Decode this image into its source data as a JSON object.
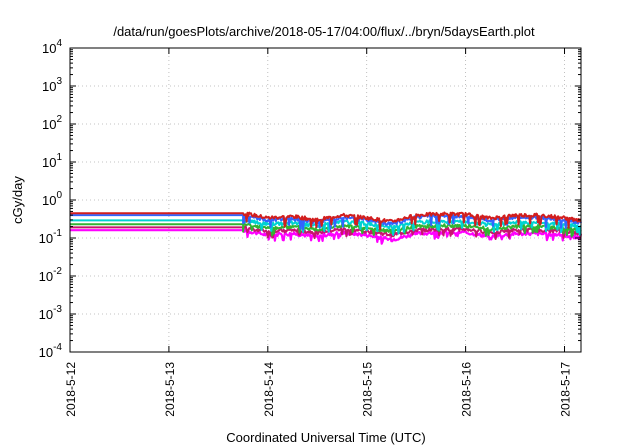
{
  "chart_data": {
    "type": "line",
    "title": "/data/run/goesPlots/archive/2018-05-17/04:00/flux/../bryn/5daysEarth.plot",
    "xlabel": "Coordinated Universal Time (UTC)",
    "ylabel": "cGy/day",
    "yscale": "log",
    "ylim": [
      0.0001,
      10000
    ],
    "xlim": [
      "2018-05-12 00:00",
      "2018-05-17 04:00"
    ],
    "x_ticks": [
      "2018-5-12",
      "2018-5-13",
      "2018-5-14",
      "2018-5-15",
      "2018-5-16",
      "2018-5-17"
    ],
    "y_ticks": [
      {
        "base": "10",
        "exp": "-4"
      },
      {
        "base": "10",
        "exp": "-3"
      },
      {
        "base": "10",
        "exp": "-2"
      },
      {
        "base": "10",
        "exp": "-1"
      },
      {
        "base": "10",
        "exp": "0"
      },
      {
        "base": "10",
        "exp": "1"
      },
      {
        "base": "10",
        "exp": "2"
      },
      {
        "base": "10",
        "exp": "3"
      },
      {
        "base": "10",
        "exp": "4"
      }
    ],
    "grid": true,
    "legend": "none",
    "series": [
      {
        "color": "#ff00ff",
        "x": [
          "2018-05-12 00:00",
          "2018-05-13 18:00",
          "2018-05-14 00:00",
          "2018-05-14 06:00",
          "2018-05-14 12:00",
          "2018-05-14 18:00",
          "2018-05-15 00:00",
          "2018-05-15 06:00",
          "2018-05-15 12:00",
          "2018-05-15 18:00",
          "2018-05-16 00:00",
          "2018-05-16 06:00",
          "2018-05-16 12:00",
          "2018-05-16 18:00",
          "2018-05-17 00:00",
          "2018-05-17 04:00"
        ],
        "values": [
          0.16,
          0.16,
          0.12,
          0.13,
          0.11,
          0.14,
          0.12,
          0.09,
          0.13,
          0.14,
          0.14,
          0.11,
          0.13,
          0.13,
          0.12,
          0.1
        ]
      },
      {
        "color": "#c8146e",
        "x": [
          "2018-05-12 00:00",
          "2018-05-13 18:00",
          "2018-05-14 00:00",
          "2018-05-14 06:00",
          "2018-05-14 12:00",
          "2018-05-14 18:00",
          "2018-05-15 00:00",
          "2018-05-15 06:00",
          "2018-05-15 12:00",
          "2018-05-15 18:00",
          "2018-05-16 00:00",
          "2018-05-16 06:00",
          "2018-05-16 12:00",
          "2018-05-16 18:00",
          "2018-05-17 00:00",
          "2018-05-17 04:00"
        ],
        "values": [
          0.19,
          0.19,
          0.15,
          0.16,
          0.14,
          0.17,
          0.15,
          0.12,
          0.16,
          0.17,
          0.17,
          0.14,
          0.16,
          0.16,
          0.15,
          0.13
        ]
      },
      {
        "color": "#32b432",
        "x": [
          "2018-05-12 00:00",
          "2018-05-13 18:00",
          "2018-05-14 00:00",
          "2018-05-14 06:00",
          "2018-05-14 12:00",
          "2018-05-14 18:00",
          "2018-05-15 00:00",
          "2018-05-15 06:00",
          "2018-05-15 12:00",
          "2018-05-15 18:00",
          "2018-05-16 00:00",
          "2018-05-16 06:00",
          "2018-05-16 12:00",
          "2018-05-16 18:00",
          "2018-05-17 00:00",
          "2018-05-17 04:00"
        ],
        "values": [
          0.23,
          0.23,
          0.18,
          0.2,
          0.17,
          0.21,
          0.18,
          0.15,
          0.2,
          0.21,
          0.21,
          0.17,
          0.2,
          0.2,
          0.18,
          0.16
        ]
      },
      {
        "color": "#00d2d2",
        "x": [
          "2018-05-12 00:00",
          "2018-05-13 18:00",
          "2018-05-14 00:00",
          "2018-05-14 06:00",
          "2018-05-14 12:00",
          "2018-05-14 18:00",
          "2018-05-15 00:00",
          "2018-05-15 06:00",
          "2018-05-15 12:00",
          "2018-05-15 18:00",
          "2018-05-16 00:00",
          "2018-05-16 06:00",
          "2018-05-16 12:00",
          "2018-05-16 18:00",
          "2018-05-17 00:00",
          "2018-05-17 04:00"
        ],
        "values": [
          0.29,
          0.29,
          0.23,
          0.25,
          0.21,
          0.27,
          0.24,
          0.19,
          0.26,
          0.27,
          0.27,
          0.22,
          0.26,
          0.26,
          0.23,
          0.2
        ]
      },
      {
        "color": "#3264ff",
        "x": [
          "2018-05-12 00:00",
          "2018-05-13 18:00",
          "2018-05-14 00:00",
          "2018-05-14 06:00",
          "2018-05-14 12:00",
          "2018-05-14 18:00",
          "2018-05-15 00:00",
          "2018-05-15 06:00",
          "2018-05-15 12:00",
          "2018-05-15 18:00",
          "2018-05-16 00:00",
          "2018-05-16 06:00",
          "2018-05-16 12:00",
          "2018-05-16 18:00",
          "2018-05-17 00:00",
          "2018-05-17 04:00"
        ],
        "values": [
          0.4,
          0.4,
          0.3,
          0.32,
          0.26,
          0.35,
          0.3,
          0.23,
          0.36,
          0.38,
          0.37,
          0.29,
          0.35,
          0.35,
          0.3,
          0.25
        ]
      },
      {
        "color": "#d21e1e",
        "x": [
          "2018-05-12 00:00",
          "2018-05-13 18:00",
          "2018-05-14 00:00",
          "2018-05-14 06:00",
          "2018-05-14 12:00",
          "2018-05-14 18:00",
          "2018-05-15 00:00",
          "2018-05-15 06:00",
          "2018-05-15 12:00",
          "2018-05-15 18:00",
          "2018-05-16 00:00",
          "2018-05-16 06:00",
          "2018-05-16 12:00",
          "2018-05-16 18:00",
          "2018-05-17 00:00",
          "2018-05-17 04:00"
        ],
        "values": [
          0.45,
          0.45,
          0.34,
          0.37,
          0.3,
          0.4,
          0.34,
          0.27,
          0.4,
          0.43,
          0.42,
          0.33,
          0.4,
          0.4,
          0.34,
          0.28
        ]
      }
    ]
  }
}
